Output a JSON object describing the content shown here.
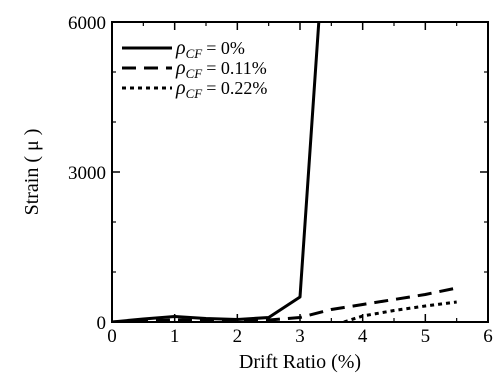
{
  "chart_data": {
    "type": "line",
    "xlabel": "Drift Ratio (%)",
    "ylabel": "Strain ( μ )",
    "xlim": [
      0,
      6
    ],
    "ylim": [
      0,
      6000
    ],
    "x_ticks": [
      "0",
      "1",
      "2",
      "3",
      "4",
      "5",
      "6"
    ],
    "y_ticks": [
      "0",
      "3000",
      "6000"
    ],
    "grid": false,
    "legend_position": "top-left",
    "series": [
      {
        "name": "ρCF = 0%",
        "symbol": "ρ",
        "subscript": "CF",
        "value_text": "= 0%",
        "style": "solid",
        "x": [
          0,
          0.5,
          1.0,
          1.5,
          2.0,
          2.5,
          3.0,
          3.3
        ],
        "y": [
          0,
          60,
          110,
          70,
          50,
          90,
          500,
          6000
        ]
      },
      {
        "name": "ρCF = 0.11%",
        "symbol": "ρ",
        "subscript": "CF",
        "value_text": "= 0.11%",
        "style": "dashed",
        "x": [
          0,
          1.0,
          2.0,
          2.5,
          3.0,
          3.5,
          4.0,
          4.5,
          5.0,
          5.5
        ],
        "y": [
          0,
          40,
          30,
          40,
          90,
          250,
          350,
          450,
          550,
          680
        ]
      },
      {
        "name": "ρCF = 0.22%",
        "symbol": "ρ",
        "subscript": "CF",
        "value_text": "= 0.22%",
        "style": "dotted",
        "x": [
          3.7,
          4.0,
          4.5,
          5.0,
          5.5
        ],
        "y": [
          0,
          120,
          230,
          320,
          400
        ]
      }
    ]
  }
}
